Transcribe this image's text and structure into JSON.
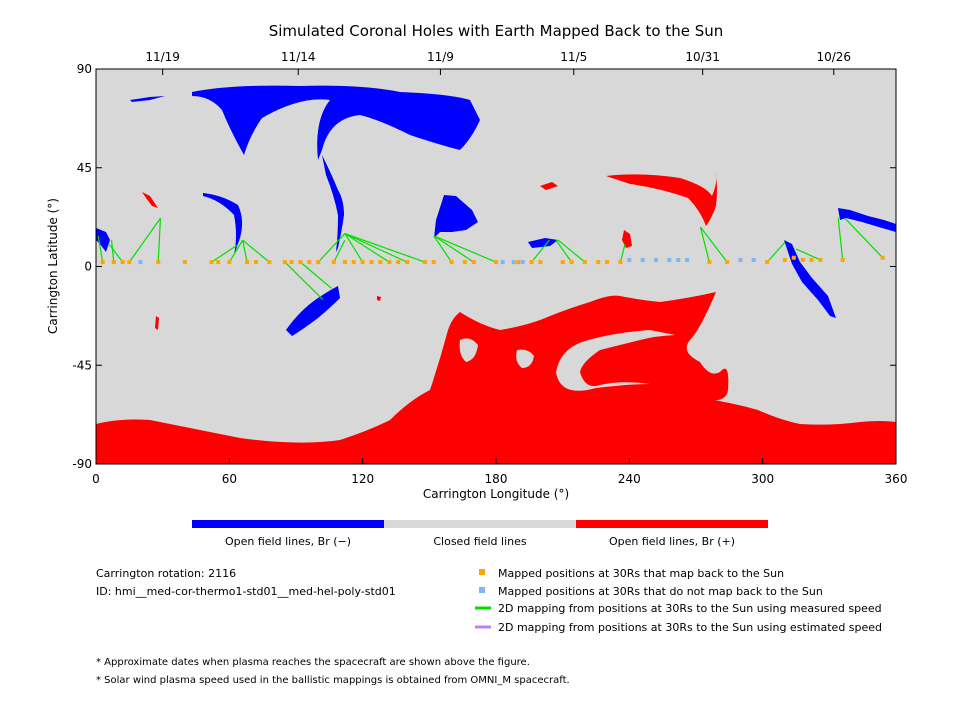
{
  "chart_data": {
    "type": "scatter",
    "title": "Simulated Coronal Holes with Earth Mapped Back to the Sun",
    "xlabel": "Carrington Longitude (°)",
    "ylabel": "Carrington Latitude (°)",
    "xlim": [
      0,
      360
    ],
    "ylim": [
      -90,
      90
    ],
    "x_ticks": [
      0,
      60,
      120,
      180,
      240,
      300,
      360
    ],
    "y_ticks": [
      -90,
      -45,
      0,
      45,
      90
    ],
    "top_axis_dates": [
      {
        "label": "11/19",
        "lon": 30
      },
      {
        "label": "11/14",
        "lon": 91
      },
      {
        "label": "11/9",
        "lon": 155
      },
      {
        "label": "11/5",
        "lon": 215
      },
      {
        "label": "10/31",
        "lon": 273
      },
      {
        "label": "10/26",
        "lon": 332
      }
    ],
    "colors": {
      "negative": "#0000ff",
      "closed": "#d8d8d8",
      "positive": "#ff0000",
      "mapped": "#ffa500",
      "unmapped": "#7ab8f5",
      "measured": "#00e000",
      "estimated": "#c080f0"
    },
    "colorbar": {
      "labels": [
        "Open field lines, Br (−)",
        "Closed field lines",
        "Open field lines, Br (+)"
      ]
    },
    "series": [
      {
        "name": "Mapped positions at 30Rs that map back to the Sun",
        "points": [
          [
            3,
            2
          ],
          [
            8,
            2
          ],
          [
            12,
            2
          ],
          [
            15,
            2
          ],
          [
            28,
            2
          ],
          [
            40,
            2
          ],
          [
            52,
            2
          ],
          [
            55,
            2
          ],
          [
            60,
            2
          ],
          [
            68,
            2
          ],
          [
            72,
            2
          ],
          [
            78,
            2
          ],
          [
            85,
            2
          ],
          [
            88,
            2
          ],
          [
            92,
            2
          ],
          [
            96,
            2
          ],
          [
            100,
            2
          ],
          [
            107,
            2
          ],
          [
            112,
            2
          ],
          [
            116,
            2
          ],
          [
            120,
            2
          ],
          [
            124,
            2
          ],
          [
            128,
            2
          ],
          [
            132,
            2
          ],
          [
            136,
            2
          ],
          [
            140,
            2
          ],
          [
            148,
            2
          ],
          [
            152,
            2
          ],
          [
            160,
            2
          ],
          [
            166,
            2
          ],
          [
            170,
            2
          ],
          [
            180,
            2
          ],
          [
            190,
            2
          ],
          [
            196,
            2
          ],
          [
            200,
            2
          ],
          [
            210,
            2
          ],
          [
            214,
            2
          ],
          [
            220,
            2
          ],
          [
            226,
            2
          ],
          [
            230,
            2
          ],
          [
            236,
            2
          ],
          [
            276,
            2
          ],
          [
            284,
            2
          ],
          [
            302,
            2
          ],
          [
            310,
            3
          ],
          [
            314,
            4
          ],
          [
            318,
            3
          ],
          [
            322,
            3
          ],
          [
            326,
            3
          ],
          [
            336,
            3
          ],
          [
            354,
            4
          ]
        ]
      },
      {
        "name": "Mapped positions at 30Rs that do not map back to the Sun",
        "points": [
          [
            20,
            2
          ],
          [
            183,
            2
          ],
          [
            188,
            2
          ],
          [
            192,
            2
          ],
          [
            240,
            3
          ],
          [
            246,
            3
          ],
          [
            252,
            3
          ],
          [
            258,
            3
          ],
          [
            262,
            3
          ],
          [
            266,
            3
          ],
          [
            290,
            3
          ],
          [
            296,
            3
          ]
        ]
      },
      {
        "name": "2D mapping from positions at 30Rs to the Sun using measured speed",
        "segments": [
          [
            3,
            2,
            1,
            14
          ],
          [
            8,
            2,
            7,
            12
          ],
          [
            12,
            2,
            6,
            10
          ],
          [
            15,
            2,
            29,
            22
          ],
          [
            28,
            2,
            29,
            22
          ],
          [
            52,
            2,
            64,
            10
          ],
          [
            60,
            2,
            66,
            12
          ],
          [
            68,
            2,
            66,
            12
          ],
          [
            78,
            2,
            66,
            12
          ],
          [
            85,
            2,
            102,
            -15
          ],
          [
            92,
            2,
            106,
            -10
          ],
          [
            100,
            2,
            112,
            15
          ],
          [
            107,
            2,
            112,
            12
          ],
          [
            120,
            2,
            112,
            15
          ],
          [
            132,
            2,
            112,
            15
          ],
          [
            140,
            2,
            112,
            15
          ],
          [
            148,
            2,
            112,
            15
          ],
          [
            160,
            2,
            152,
            14
          ],
          [
            170,
            2,
            152,
            14
          ],
          [
            180,
            2,
            152,
            14
          ],
          [
            196,
            2,
            204,
            12
          ],
          [
            214,
            2,
            207,
            12
          ],
          [
            220,
            2,
            208,
            12
          ],
          [
            236,
            2,
            238,
            10
          ],
          [
            276,
            2,
            272,
            18
          ],
          [
            284,
            2,
            272,
            18
          ],
          [
            302,
            2,
            310,
            11
          ],
          [
            326,
            3,
            315,
            8
          ],
          [
            336,
            3,
            334,
            22
          ],
          [
            354,
            4,
            337,
            22
          ]
        ]
      },
      {
        "name": "2D mapping from positions at 30Rs to the Sun using estimated speed",
        "segments": []
      }
    ],
    "info_lines": [
      "Carrington rotation: 2116",
      "ID: hmi__med-cor-thermo1-std01__med-hel-poly-std01"
    ],
    "notes": [
      "* Approximate dates when plasma reaches the spacecraft are shown above the figure.",
      "* Solar wind plasma speed used in the ballistic mappings is obtained from OMNI_M spacecraft."
    ]
  }
}
